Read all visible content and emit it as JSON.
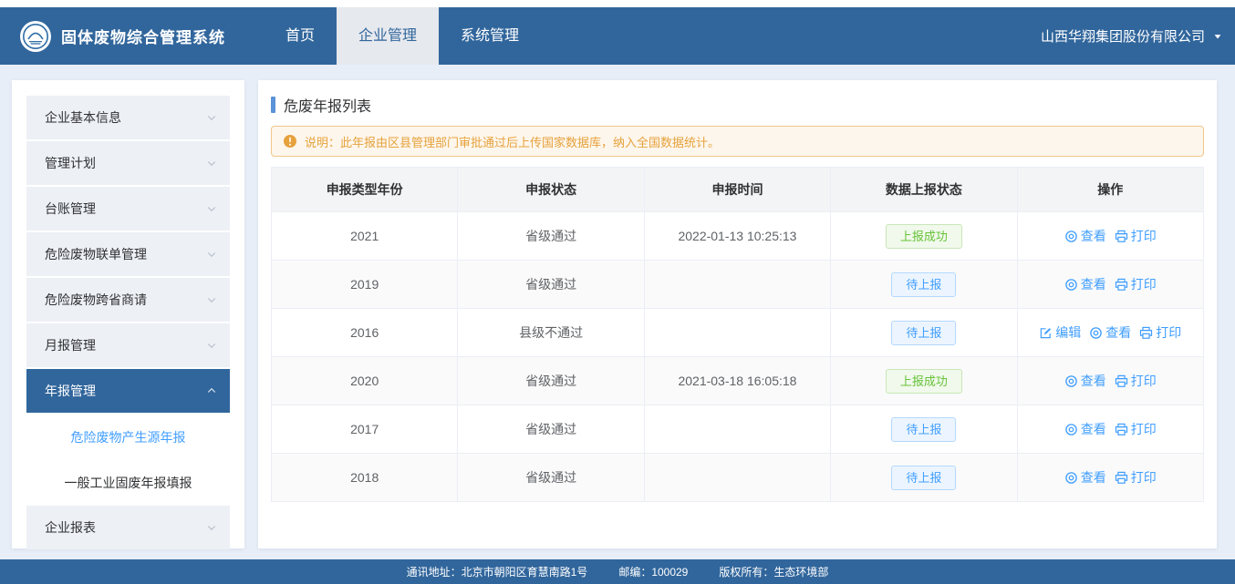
{
  "colors": {
    "navbar_blue": "#31669c",
    "accent_blue": "#409eff",
    "success_green": "#67c23a",
    "warning_orange": "#e6a23c",
    "page_background": "#e8eef8"
  },
  "header": {
    "logo_icon": "ministry-emblem-icon",
    "app_title": "固体废物综合管理系统",
    "nav": [
      {
        "id": "home",
        "label": "首页",
        "active": false
      },
      {
        "id": "enterprise-management",
        "label": "企业管理",
        "active": true
      },
      {
        "id": "system-management",
        "label": "系统管理",
        "active": false
      }
    ],
    "company": {
      "label": "山西华翔集团股份有限公司",
      "caret_icon": "caret-down-icon"
    }
  },
  "sidebar": {
    "items": [
      {
        "id": "enterprise-basic-info",
        "label": "企业基本信息",
        "expanded": false,
        "active": false
      },
      {
        "id": "management-plan",
        "label": "管理计划",
        "expanded": false,
        "active": false
      },
      {
        "id": "ledger-management",
        "label": "台账管理",
        "expanded": false,
        "active": false
      },
      {
        "id": "hazardous-waste-manifest",
        "label": "危险废物联单管理",
        "expanded": false,
        "active": false
      },
      {
        "id": "hazardous-waste-cross-province",
        "label": "危险废物跨省商请",
        "expanded": false,
        "active": false
      },
      {
        "id": "monthly-report",
        "label": "月报管理",
        "expanded": false,
        "active": false
      },
      {
        "id": "annual-report",
        "label": "年报管理",
        "expanded": true,
        "active": true,
        "children": [
          {
            "id": "hazardous-waste-source-annual-report",
            "label": "危险废物产生源年报",
            "active": true
          },
          {
            "id": "industrial-solid-waste-annual-report",
            "label": "一般工业固废年报填报",
            "active": false
          }
        ]
      },
      {
        "id": "enterprise-reports",
        "label": "企业报表",
        "expanded": false,
        "active": false
      }
    ]
  },
  "main": {
    "title": "危废年报列表",
    "notice": {
      "icon": "warning-circle-icon",
      "text": "说明：此年报由区县管理部门审批通过后上传国家数据库，纳入全国数据统计。"
    },
    "table": {
      "headers": [
        "申报类型年份",
        "申报状态",
        "申报时间",
        "数据上报状态",
        "操作"
      ],
      "rows": [
        {
          "year": "2021",
          "status": "省级通过",
          "time": "2022-01-13 10:25:13",
          "upload_status": "上报成功",
          "upload_state": "success",
          "actions": [
            {
              "type": "view",
              "label": "查看"
            },
            {
              "type": "print",
              "label": "打印"
            }
          ]
        },
        {
          "year": "2019",
          "status": "省级通过",
          "time": "",
          "upload_status": "待上报",
          "upload_state": "pending",
          "actions": [
            {
              "type": "view",
              "label": "查看"
            },
            {
              "type": "print",
              "label": "打印"
            }
          ]
        },
        {
          "year": "2016",
          "status": "县级不通过",
          "time": "",
          "upload_status": "待上报",
          "upload_state": "pending",
          "actions": [
            {
              "type": "edit",
              "label": "编辑"
            },
            {
              "type": "view",
              "label": "查看"
            },
            {
              "type": "print",
              "label": "打印"
            }
          ]
        },
        {
          "year": "2020",
          "status": "省级通过",
          "time": "2021-03-18 16:05:18",
          "upload_status": "上报成功",
          "upload_state": "success",
          "actions": [
            {
              "type": "view",
              "label": "查看"
            },
            {
              "type": "print",
              "label": "打印"
            }
          ]
        },
        {
          "year": "2017",
          "status": "省级通过",
          "time": "",
          "upload_status": "待上报",
          "upload_state": "pending",
          "actions": [
            {
              "type": "view",
              "label": "查看"
            },
            {
              "type": "print",
              "label": "打印"
            }
          ]
        },
        {
          "year": "2018",
          "status": "省级通过",
          "time": "",
          "upload_status": "待上报",
          "upload_state": "pending",
          "actions": [
            {
              "type": "view",
              "label": "查看"
            },
            {
              "type": "print",
              "label": "打印"
            }
          ]
        }
      ]
    }
  },
  "footer": {
    "address": "通讯地址：北京市朝阳区育慧南路1号",
    "postcode": "邮编：100029",
    "copyright": "版权所有：生态环境部"
  },
  "icons": {
    "view": "eye-icon",
    "print": "printer-icon",
    "edit": "edit-icon",
    "expand": "chevron-down-icon",
    "collapse": "chevron-up-icon"
  }
}
